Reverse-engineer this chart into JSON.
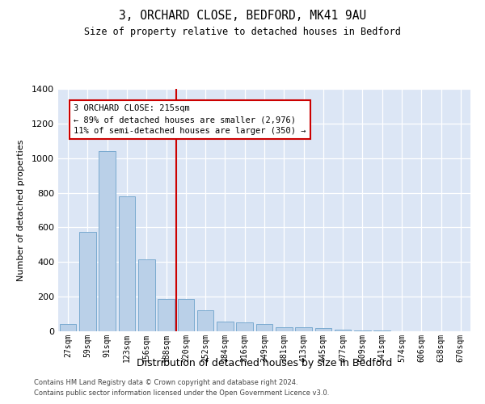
{
  "title1": "3, ORCHARD CLOSE, BEDFORD, MK41 9AU",
  "title2": "Size of property relative to detached houses in Bedford",
  "xlabel": "Distribution of detached houses by size in Bedford",
  "ylabel": "Number of detached properties",
  "categories": [
    "27sqm",
    "59sqm",
    "91sqm",
    "123sqm",
    "156sqm",
    "188sqm",
    "220sqm",
    "252sqm",
    "284sqm",
    "316sqm",
    "349sqm",
    "381sqm",
    "413sqm",
    "445sqm",
    "477sqm",
    "509sqm",
    "541sqm",
    "574sqm",
    "606sqm",
    "638sqm",
    "670sqm"
  ],
  "values": [
    40,
    575,
    1040,
    780,
    415,
    185,
    185,
    120,
    55,
    50,
    40,
    25,
    22,
    18,
    10,
    5,
    3,
    2,
    1,
    0,
    0
  ],
  "bar_color": "#bad0e8",
  "bar_edge_color": "#7aaad0",
  "vline_color": "#cc0000",
  "annotation_text": "3 ORCHARD CLOSE: 215sqm\n← 89% of detached houses are smaller (2,976)\n11% of semi-detached houses are larger (350) →",
  "annotation_box_color": "#ffffff",
  "annotation_box_edge": "#cc0000",
  "ylim": [
    0,
    1400
  ],
  "yticks": [
    0,
    200,
    400,
    600,
    800,
    1000,
    1200,
    1400
  ],
  "bg_color": "#dce6f5",
  "footer1": "Contains HM Land Registry data © Crown copyright and database right 2024.",
  "footer2": "Contains public sector information licensed under the Open Government Licence v3.0."
}
